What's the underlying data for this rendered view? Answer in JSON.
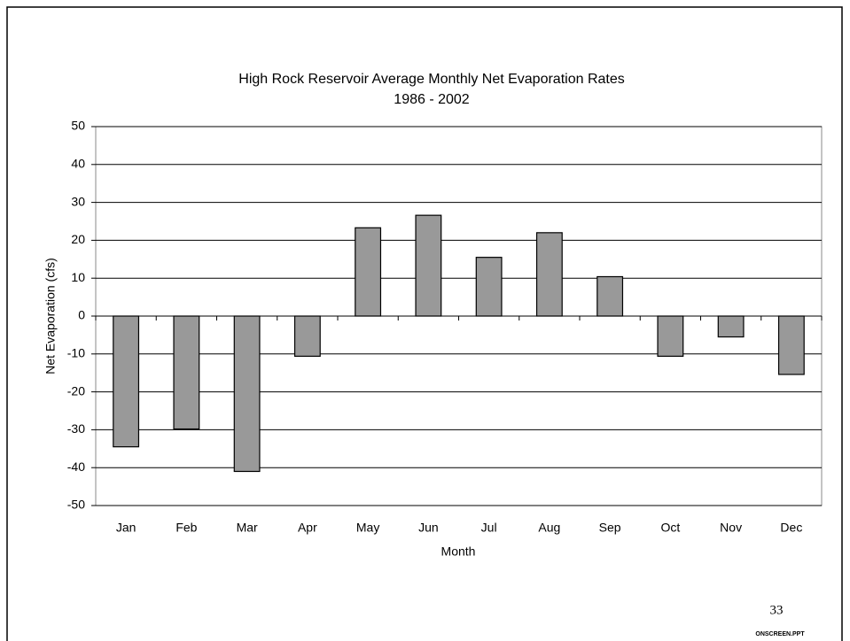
{
  "chart_data": {
    "type": "bar",
    "title": "High Rock Reservoir Average Monthly Net Evaporation Rates",
    "subtitle": "1986 - 2002",
    "x_label": "Month",
    "y_label": "Net Evaporation (cfs)",
    "categories": [
      "Jan",
      "Feb",
      "Mar",
      "Apr",
      "May",
      "Jun",
      "Jul",
      "Aug",
      "Sep",
      "Oct",
      "Nov",
      "Dec"
    ],
    "values": [
      -34.5,
      -29.8,
      -41,
      -10.6,
      23.3,
      26.6,
      15.5,
      22,
      10.4,
      -10.6,
      -5.5,
      -15.4
    ],
    "color": "#999999",
    "ylim": [
      -50,
      50
    ],
    "yticks": [
      -50,
      -40,
      -30,
      -20,
      -10,
      0,
      10,
      20,
      30,
      40,
      50
    ],
    "grid": true
  },
  "slide": {
    "number": "33",
    "file": "ONSCREEN.PPT"
  }
}
